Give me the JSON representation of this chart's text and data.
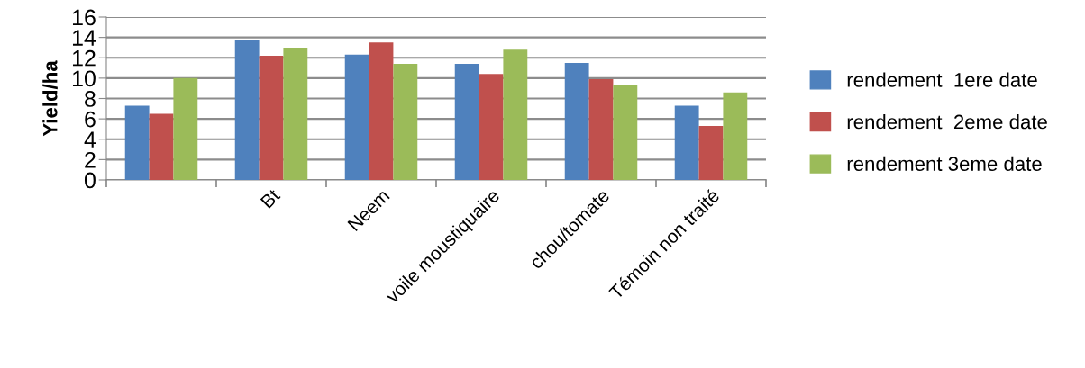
{
  "chart_data": {
    "type": "bar",
    "ylabel": "Yield/ha",
    "categories": [
      null,
      "Bt",
      "Neem",
      "voile moustiquaire",
      "chou/tomate",
      "Témoin non traité"
    ],
    "series": [
      {
        "name": "rendement  1ere date",
        "color": "#4f81bd",
        "values": [
          7.3,
          13.8,
          12.3,
          11.4,
          11.5,
          7.3
        ]
      },
      {
        "name": "rendement  2eme date",
        "color": "#c0504d",
        "values": [
          6.5,
          12.2,
          13.5,
          10.4,
          9.9,
          5.3
        ]
      },
      {
        "name": "rendement 3eme date",
        "color": "#9bbb59",
        "values": [
          10.0,
          13.0,
          11.4,
          12.8,
          9.3,
          8.6
        ]
      }
    ],
    "ylim": [
      0,
      16
    ],
    "yticks": [
      0,
      2,
      4,
      6,
      8,
      10,
      12,
      14,
      16
    ],
    "grid": "y",
    "legend": "right"
  }
}
